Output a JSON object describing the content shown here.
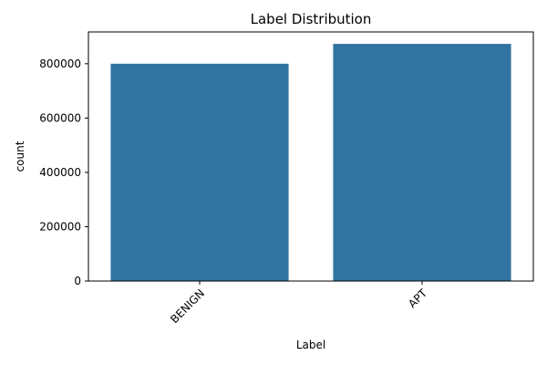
{
  "chart_data": {
    "type": "bar",
    "title": "Label Distribution",
    "xlabel": "Label",
    "ylabel": "count",
    "categories": [
      "BENIGN",
      "APT"
    ],
    "values": [
      800000,
      873000
    ],
    "ylim": [
      0,
      917000
    ],
    "yticks": [
      0,
      200000,
      400000,
      600000,
      800000
    ],
    "ytick_labels": [
      "0",
      "200000",
      "400000",
      "600000",
      "800000"
    ],
    "xtick_rotation_deg": 45,
    "grid": false,
    "legend": "none",
    "bar_color": "#3274a1"
  }
}
